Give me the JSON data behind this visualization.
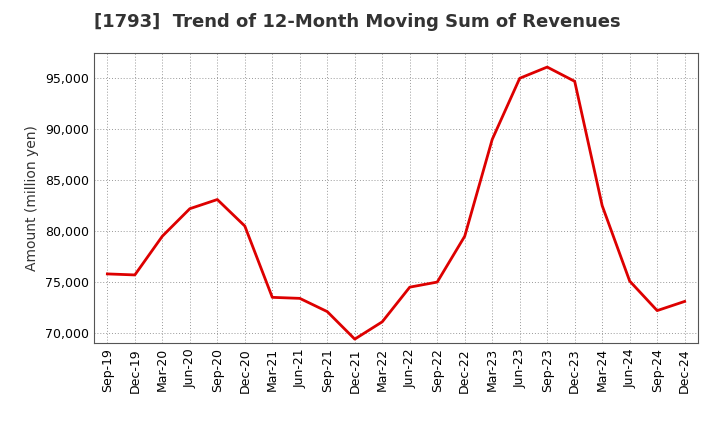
{
  "title": "[1793]  Trend of 12-Month Moving Sum of Revenues",
  "ylabel": "Amount (million yen)",
  "background_color": "#ffffff",
  "plot_bg_color": "#ffffff",
  "line_color": "#dd0000",
  "line_width": 2.0,
  "grid_color": "#999999",
  "x_labels": [
    "Sep-19",
    "Dec-19",
    "Mar-20",
    "Jun-20",
    "Sep-20",
    "Dec-20",
    "Mar-21",
    "Jun-21",
    "Sep-21",
    "Dec-21",
    "Mar-22",
    "Jun-22",
    "Sep-22",
    "Dec-22",
    "Mar-23",
    "Jun-23",
    "Sep-23",
    "Dec-23",
    "Mar-24",
    "Jun-24",
    "Sep-24",
    "Dec-24"
  ],
  "y_values": [
    75800,
    75700,
    79500,
    82200,
    83100,
    80500,
    73500,
    73400,
    72100,
    69400,
    71100,
    74500,
    75000,
    79500,
    89000,
    95000,
    96100,
    94700,
    82500,
    75100,
    72200,
    73100
  ],
  "ylim_min": 69000,
  "ylim_max": 97500,
  "yticks": [
    70000,
    75000,
    80000,
    85000,
    90000,
    95000
  ],
  "title_fontsize": 13,
  "ylabel_fontsize": 10,
  "tick_fontsize": 9,
  "title_color": "#333333"
}
